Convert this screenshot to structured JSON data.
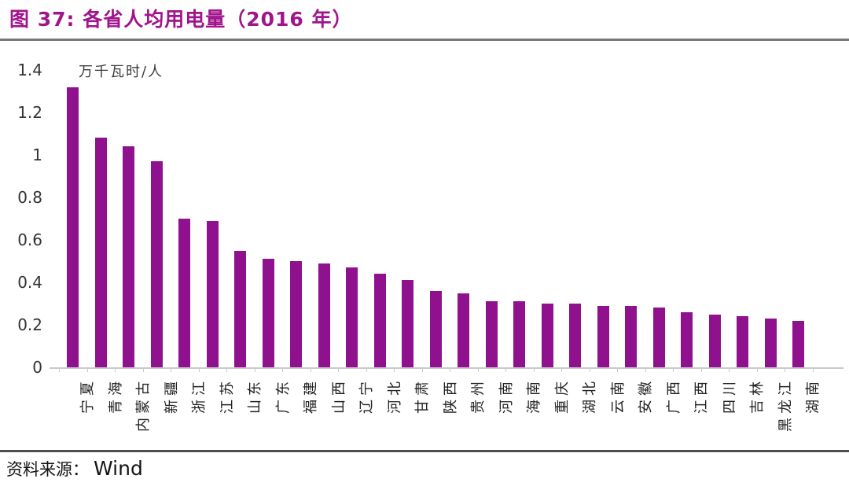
{
  "header": {
    "title": "图 37:  各省人均用电量（2016 年）"
  },
  "footer": {
    "source_label": "资料来源：",
    "source_name": "Wind"
  },
  "chart_data": {
    "type": "bar",
    "title": "各省人均用电量（2016 年）",
    "ylabel": "万千瓦时/人",
    "xlabel": "",
    "ylim": [
      0,
      1.4
    ],
    "yticks": [
      0,
      0.2,
      0.4,
      0.6,
      0.8,
      1,
      1.2,
      1.4
    ],
    "grid": false,
    "legend": "none",
    "bar_color": "#8F118D",
    "title_color": "#A0148C",
    "axis_color": "#c9c9c9",
    "categories": [
      "宁夏",
      "青海",
      "内蒙古",
      "新疆",
      "浙江",
      "江苏",
      "山东",
      "广东",
      "福建",
      "山西",
      "辽宁",
      "河北",
      "甘肃",
      "陕西",
      "贵州",
      "河南",
      "海南",
      "重庆",
      "湖北",
      "云南",
      "安徽",
      "广西",
      "江西",
      "四川",
      "吉林",
      "黑龙江",
      "湖南"
    ],
    "values": [
      1.32,
      1.08,
      1.04,
      0.97,
      0.7,
      0.69,
      0.55,
      0.51,
      0.5,
      0.49,
      0.47,
      0.44,
      0.41,
      0.36,
      0.35,
      0.31,
      0.31,
      0.3,
      0.3,
      0.29,
      0.29,
      0.28,
      0.26,
      0.25,
      0.24,
      0.23,
      0.22
    ]
  }
}
